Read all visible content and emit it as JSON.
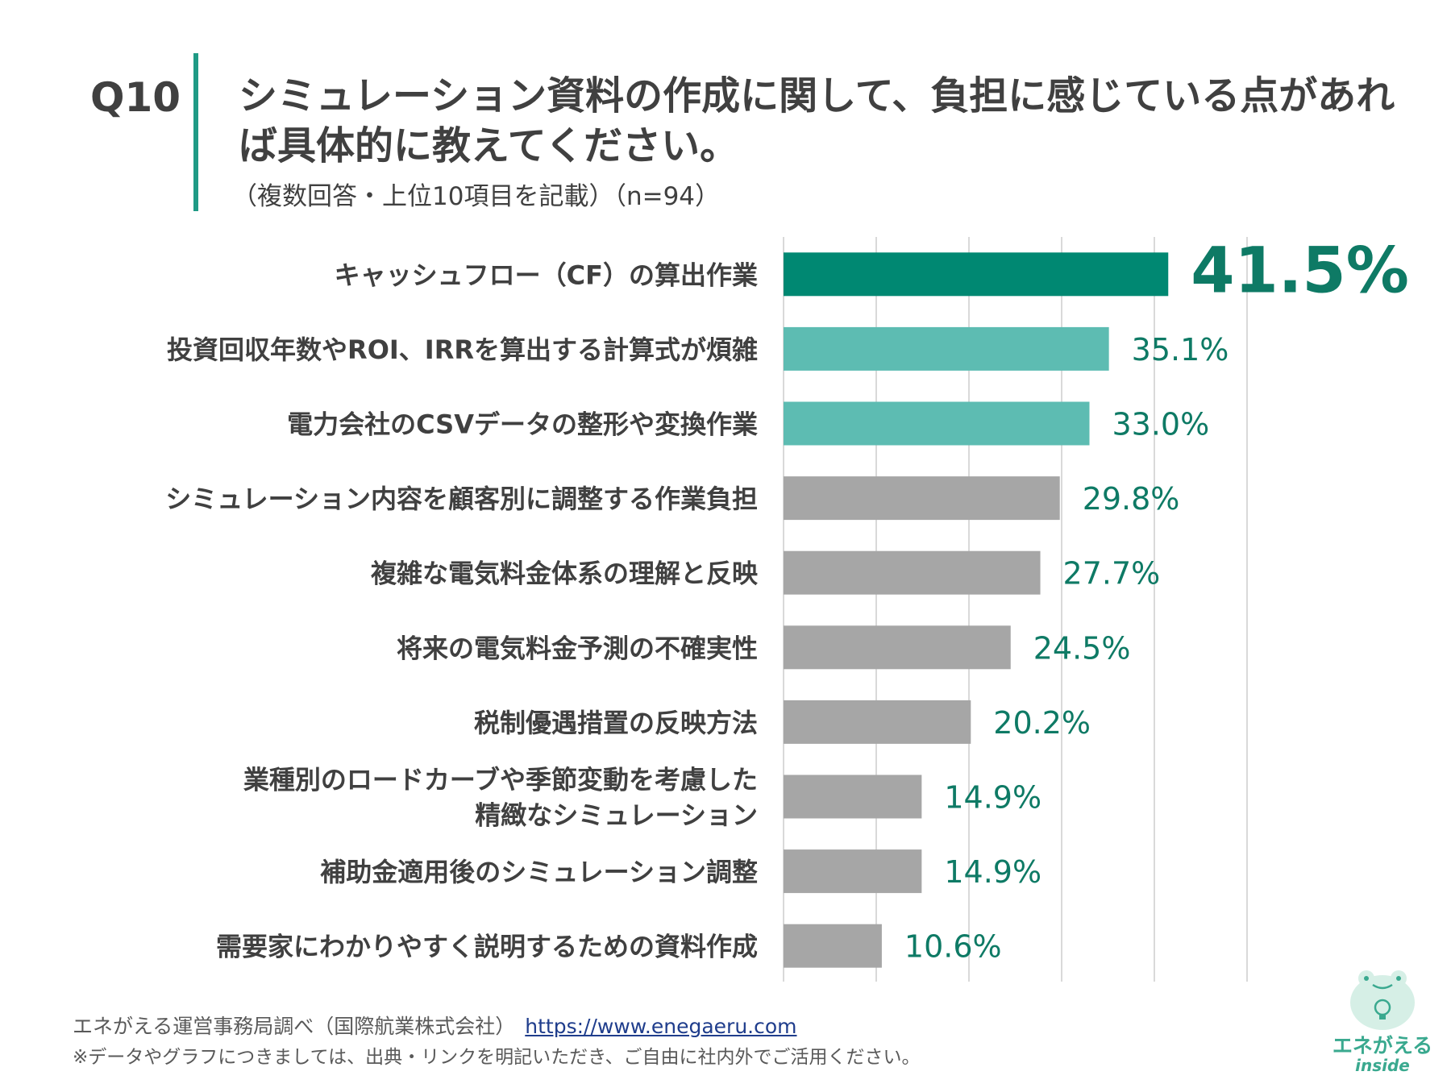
{
  "header": {
    "q_number": "Q10",
    "title": "シミュレーション資料の作成に関して、負担に感じている点があれば具体的に教えてください。",
    "subtitle": "（複数回答・上位10項目を記載）（n=94）"
  },
  "chart_data": {
    "type": "bar",
    "orientation": "horizontal",
    "title": "シミュレーション資料の作成に関して、負担に感じている点があれば具体的に教えてください。",
    "categories": [
      "キャッシュフロー（CF）の算出作業",
      "投資回収年数やROI、IRRを算出する計算式が煩雑",
      "電力会社のCSVデータの整形や変換作業",
      "シミュレーション内容を顧客別に調整する作業負担",
      "複雑な電気料金体系の理解と反映",
      "将来の電気料金予測の不確実性",
      "税制優遇措置の反映方法",
      "業種別のロードカーブや季節変動を考慮した\n精緻なシミュレーション",
      "補助金適用後のシミュレーション調整",
      "需要家にわかりやすく説明するための資料作成"
    ],
    "values": [
      41.5,
      35.1,
      33.0,
      29.8,
      27.7,
      24.5,
      20.2,
      14.9,
      14.9,
      10.6
    ],
    "value_labels": [
      "41.5%",
      "35.1%",
      "33.0%",
      "29.8%",
      "27.7%",
      "24.5%",
      "20.2%",
      "14.9%",
      "14.9%",
      "10.6%"
    ],
    "xlim": [
      0,
      50
    ],
    "grid": true,
    "colors": [
      "#008872",
      "#5dbcb2",
      "#5dbcb2",
      "#a6a6a6",
      "#a6a6a6",
      "#a6a6a6",
      "#a6a6a6",
      "#a6a6a6",
      "#a6a6a6",
      "#a6a6a6"
    ],
    "label_color": "#0e7a65",
    "grid_color": "#d9d9d9"
  },
  "footer": {
    "source": "エネがえる運営事務局調べ（国際航業株式会社）",
    "url": "https://www.enegaeru.com",
    "note": "※データやグラフにつきましては、出典・リンクを明記いただき、ご自由に社内外でご活用ください。"
  },
  "logo": {
    "name": "エネがえる",
    "sub": "inside"
  }
}
